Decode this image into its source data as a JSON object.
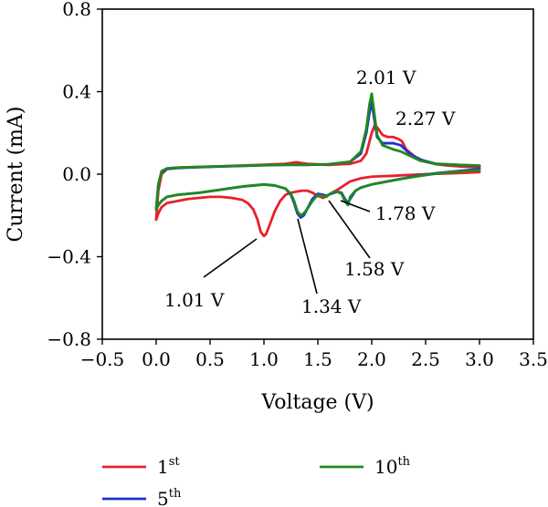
{
  "chart_data": {
    "type": "line",
    "xlabel": "Voltage (V)",
    "ylabel": "Current (mA)",
    "xlim": [
      -0.5,
      3.5
    ],
    "ylim": [
      -0.8,
      0.8
    ],
    "xticks": [
      "−0.5",
      "0.0",
      "0.5",
      "1.0",
      "1.5",
      "2.0",
      "2.5",
      "3.0",
      "3.5"
    ],
    "yticks": [
      "−0.8",
      "−0.4",
      "0.0",
      "0.4",
      "0.8"
    ],
    "grid": false,
    "legend": {
      "placement": "bottom",
      "entries": [
        {
          "base": "1",
          "sup": "st",
          "color": "#e8202a"
        },
        {
          "base": "5",
          "sup": "th",
          "color": "#1f2fd0"
        },
        {
          "base": "10",
          "sup": "th",
          "color": "#1e8a1e"
        }
      ]
    },
    "series": [
      {
        "name": "1st",
        "color": "#e8202a",
        "cathodic": {
          "x": [
            3.0,
            2.8,
            2.5,
            2.3,
            2.2,
            2.1,
            2.0,
            1.9,
            1.8,
            1.7,
            1.6,
            1.55,
            1.5,
            1.45,
            1.4,
            1.35,
            1.3,
            1.25,
            1.2,
            1.15,
            1.1,
            1.05,
            1.02,
            1.0,
            0.97,
            0.94,
            0.9,
            0.85,
            0.8,
            0.7,
            0.6,
            0.5,
            0.4,
            0.3,
            0.2,
            0.1,
            0.05,
            0.02,
            0.0
          ],
          "y": [
            0.01,
            0.005,
            0.0,
            -0.005,
            -0.008,
            -0.01,
            -0.012,
            -0.02,
            -0.035,
            -0.07,
            -0.1,
            -0.115,
            -0.105,
            -0.09,
            -0.08,
            -0.08,
            -0.085,
            -0.09,
            -0.1,
            -0.13,
            -0.18,
            -0.25,
            -0.29,
            -0.3,
            -0.28,
            -0.22,
            -0.17,
            -0.14,
            -0.125,
            -0.115,
            -0.11,
            -0.11,
            -0.115,
            -0.12,
            -0.13,
            -0.14,
            -0.16,
            -0.19,
            -0.22
          ]
        },
        "anodic": {
          "x": [
            0.0,
            0.02,
            0.05,
            0.1,
            0.15,
            0.2,
            0.4,
            0.6,
            0.8,
            1.0,
            1.2,
            1.3,
            1.4,
            1.6,
            1.8,
            1.9,
            1.95,
            2.0,
            2.03,
            2.06,
            2.1,
            2.15,
            2.2,
            2.25,
            2.28,
            2.32,
            2.4,
            2.5,
            2.6,
            2.7,
            2.8,
            2.9,
            3.0
          ],
          "y": [
            -0.22,
            -0.08,
            0.0,
            0.025,
            0.03,
            0.032,
            0.035,
            0.038,
            0.042,
            0.046,
            0.05,
            0.058,
            0.05,
            0.045,
            0.05,
            0.065,
            0.1,
            0.2,
            0.24,
            0.22,
            0.19,
            0.18,
            0.18,
            0.17,
            0.16,
            0.12,
            0.085,
            0.06,
            0.048,
            0.042,
            0.038,
            0.035,
            0.033
          ]
        }
      },
      {
        "name": "5th",
        "color": "#1f2fd0",
        "cathodic": {
          "x": [
            3.0,
            2.8,
            2.6,
            2.4,
            2.2,
            2.0,
            1.9,
            1.85,
            1.8,
            1.78,
            1.75,
            1.72,
            1.68,
            1.65,
            1.6,
            1.58,
            1.55,
            1.5,
            1.45,
            1.4,
            1.37,
            1.34,
            1.31,
            1.28,
            1.25,
            1.2,
            1.1,
            1.0,
            0.8,
            0.6,
            0.4,
            0.2,
            0.1,
            0.05,
            0.02,
            0.0
          ],
          "y": [
            0.025,
            0.015,
            0.005,
            -0.01,
            -0.03,
            -0.05,
            -0.065,
            -0.08,
            -0.12,
            -0.14,
            -0.12,
            -0.09,
            -0.085,
            -0.09,
            -0.1,
            -0.105,
            -0.1,
            -0.095,
            -0.12,
            -0.17,
            -0.2,
            -0.21,
            -0.19,
            -0.14,
            -0.1,
            -0.07,
            -0.055,
            -0.05,
            -0.06,
            -0.075,
            -0.09,
            -0.1,
            -0.11,
            -0.13,
            -0.15,
            -0.17
          ]
        },
        "anodic": {
          "x": [
            0.0,
            0.02,
            0.05,
            0.1,
            0.2,
            0.4,
            0.6,
            0.8,
            1.0,
            1.2,
            1.4,
            1.6,
            1.8,
            1.9,
            1.95,
            1.98,
            2.0,
            2.02,
            2.05,
            2.1,
            2.2,
            2.27,
            2.35,
            2.45,
            2.6,
            2.8,
            3.0
          ],
          "y": [
            -0.17,
            -0.05,
            0.01,
            0.025,
            0.03,
            0.034,
            0.037,
            0.04,
            0.043,
            0.045,
            0.045,
            0.048,
            0.06,
            0.1,
            0.2,
            0.3,
            0.35,
            0.28,
            0.18,
            0.15,
            0.15,
            0.14,
            0.1,
            0.07,
            0.05,
            0.045,
            0.04
          ]
        }
      },
      {
        "name": "10th",
        "color": "#1e8a1e",
        "cathodic": {
          "x": [
            3.0,
            2.8,
            2.6,
            2.4,
            2.2,
            2.0,
            1.9,
            1.85,
            1.8,
            1.78,
            1.75,
            1.72,
            1.68,
            1.65,
            1.6,
            1.58,
            1.55,
            1.5,
            1.45,
            1.4,
            1.37,
            1.34,
            1.31,
            1.28,
            1.25,
            1.2,
            1.1,
            1.0,
            0.8,
            0.6,
            0.4,
            0.2,
            0.1,
            0.05,
            0.02,
            0.0
          ],
          "y": [
            0.02,
            0.012,
            0.003,
            -0.012,
            -0.03,
            -0.05,
            -0.065,
            -0.08,
            -0.11,
            -0.15,
            -0.13,
            -0.095,
            -0.085,
            -0.085,
            -0.1,
            -0.11,
            -0.105,
            -0.1,
            -0.13,
            -0.17,
            -0.19,
            -0.2,
            -0.18,
            -0.13,
            -0.095,
            -0.07,
            -0.055,
            -0.05,
            -0.06,
            -0.075,
            -0.09,
            -0.1,
            -0.11,
            -0.13,
            -0.15,
            -0.17
          ]
        },
        "anodic": {
          "x": [
            0.0,
            0.02,
            0.05,
            0.1,
            0.2,
            0.4,
            0.6,
            0.8,
            1.0,
            1.2,
            1.4,
            1.6,
            1.8,
            1.9,
            1.95,
            1.98,
            2.0,
            2.02,
            2.05,
            2.1,
            2.2,
            2.27,
            2.35,
            2.45,
            2.6,
            2.8,
            3.0
          ],
          "y": [
            -0.17,
            -0.05,
            0.015,
            0.028,
            0.032,
            0.035,
            0.038,
            0.041,
            0.044,
            0.046,
            0.046,
            0.048,
            0.06,
            0.11,
            0.22,
            0.34,
            0.39,
            0.31,
            0.19,
            0.14,
            0.12,
            0.11,
            0.09,
            0.065,
            0.05,
            0.045,
            0.042
          ]
        }
      }
    ],
    "annotations": [
      {
        "text": "2.01 V",
        "x": 2.01,
        "y": 0.39
      },
      {
        "text": "2.27 V",
        "x": 2.27,
        "y": 0.18
      },
      {
        "text": "1.78 V",
        "x": 1.78,
        "y": -0.14
      },
      {
        "text": "1.58 V",
        "x": 1.58,
        "y": -0.11
      },
      {
        "text": "1.34 V",
        "x": 1.34,
        "y": -0.21
      },
      {
        "text": "1.01 V",
        "x": 1.01,
        "y": -0.3
      }
    ]
  }
}
